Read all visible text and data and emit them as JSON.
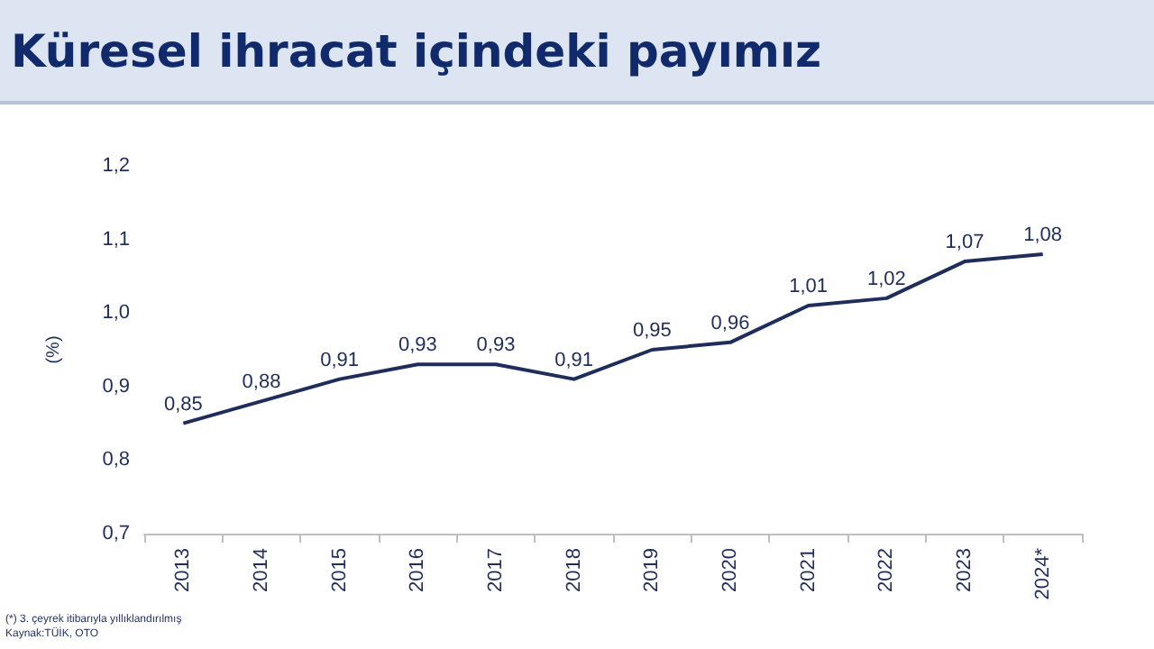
{
  "chart_data": {
    "type": "line",
    "title": "Küresel ihracat içindeki payımız",
    "ylabel": "(%)",
    "categories": [
      "2013",
      "2014",
      "2015",
      "2016",
      "2017",
      "2018",
      "2019",
      "2020",
      "2021",
      "2022",
      "2023",
      "2024*"
    ],
    "series": [
      {
        "color": "#1f2d5c",
        "values": [
          0.85,
          0.88,
          0.91,
          0.93,
          0.93,
          0.91,
          0.95,
          0.96,
          1.01,
          1.02,
          1.07,
          1.08
        ],
        "value_labels": [
          "0,85",
          "0,88",
          "0,91",
          "0,93",
          "0,93",
          "0,91",
          "0,95",
          "0,96",
          "1,01",
          "1,02",
          "1,07",
          "1,08"
        ]
      }
    ],
    "ylim": [
      0.7,
      1.2
    ],
    "yticks": [
      {
        "value": 0.7,
        "label": "0,7"
      },
      {
        "value": 0.8,
        "label": "0,8"
      },
      {
        "value": 0.9,
        "label": "0,9"
      },
      {
        "value": 1.0,
        "label": "1,0"
      },
      {
        "value": 1.1,
        "label": "1,1"
      },
      {
        "value": 1.2,
        "label": "1,2"
      }
    ],
    "grid": false,
    "marker": "none",
    "line_style": "solid",
    "annotations": [
      "(*) 3. çeyrek itibarıyla yıllıklandırılmış",
      "Kaynak:TÜİK, OTO"
    ]
  }
}
